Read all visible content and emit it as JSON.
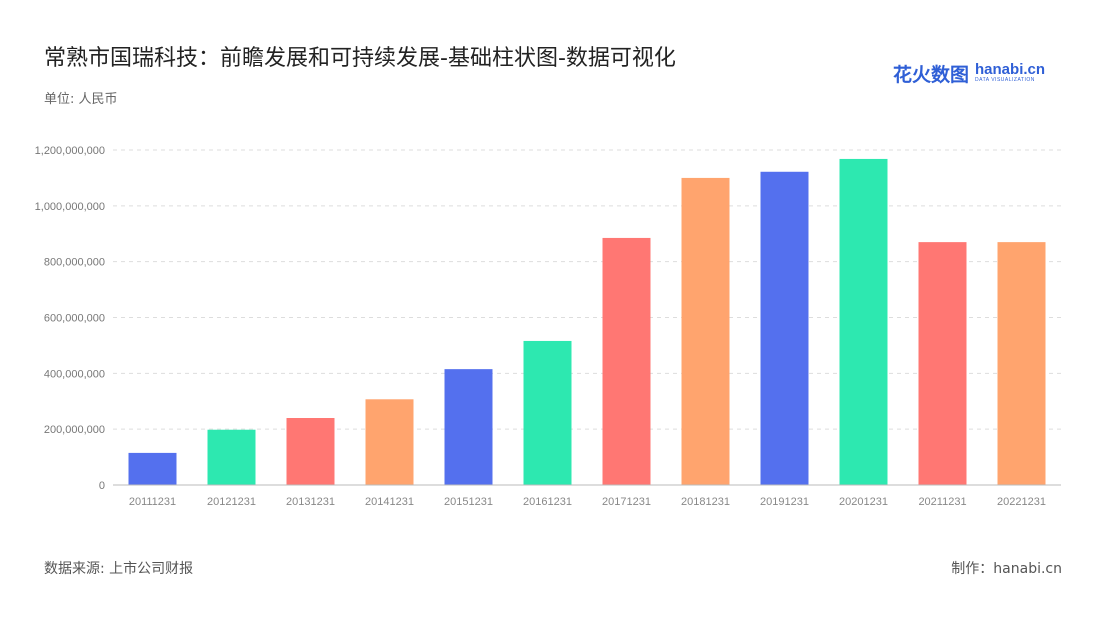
{
  "title": "常熟市国瑞科技：前瞻发展和可持续发展-基础柱状图-数据可视化",
  "unit_label": "单位: 人民币",
  "logo": {
    "cn": "花火数图",
    "en": "hanabi.cn",
    "sub": "DATA VISUALIZATION"
  },
  "footer": {
    "source": "数据来源: 上市公司财报",
    "maker": "制作：hanabi.cn"
  },
  "chart_data": {
    "type": "bar",
    "categories": [
      "20111231",
      "20121231",
      "20131231",
      "20141231",
      "20151231",
      "20161231",
      "20171231",
      "20181231",
      "20191231",
      "20201231",
      "20211231",
      "20221231"
    ],
    "values": [
      115000000,
      198000000,
      240000000,
      307000000,
      415000000,
      516000000,
      885000000,
      1100000000,
      1122000000,
      1168000000,
      870000000,
      870000000
    ],
    "colors": [
      "#5470ee",
      "#2de8b0",
      "#ff7773",
      "#ffa46e",
      "#5470ee",
      "#2de8b0",
      "#ff7773",
      "#ffa46e",
      "#5470ee",
      "#2de8b0",
      "#ff7773",
      "#ffa46e"
    ],
    "yticks": [
      "0",
      "200,000,000",
      "400,000,000",
      "600,000,000",
      "800,000,000",
      "1,000,000,000",
      "1,200,000,000"
    ],
    "ylim": [
      0,
      1200000000
    ],
    "grid": true,
    "legend": "none"
  }
}
